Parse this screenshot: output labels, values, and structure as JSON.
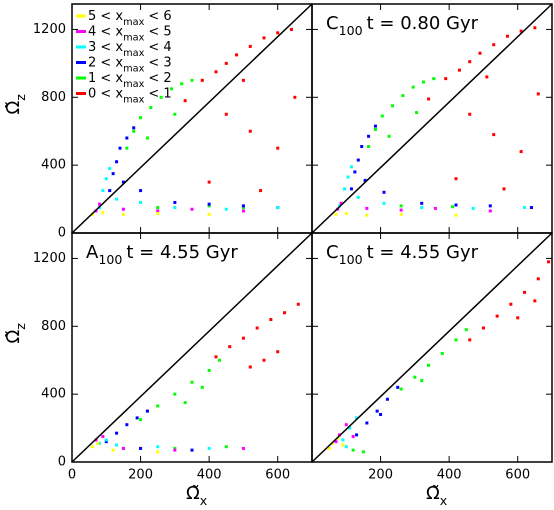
{
  "chart_data": [
    {
      "type": "scatter",
      "xlim": [
        0,
        700
      ],
      "ylim": [
        0,
        1350
      ],
      "xticks": [
        0,
        200,
        400,
        600
      ],
      "yticks": [
        0,
        400,
        800,
        1200
      ],
      "y_label": {
        "main": "Ω̃",
        "sub": "z"
      },
      "series": [
        {
          "name": {
            "pre": "5 < x",
            "sub": "max",
            "post": "< 6"
          },
          "color": "#ffff00",
          "x": [
            60,
            90,
            150,
            250,
            400
          ],
          "y": [
            110,
            120,
            110,
            115,
            110
          ]
        },
        {
          "name": {
            "pre": "4 < x",
            "sub": "max",
            "post": "< 5"
          },
          "color": "#ff00ff",
          "x": [
            70,
            80,
            150,
            250,
            350,
            500
          ],
          "y": [
            130,
            170,
            140,
            130,
            140,
            130
          ]
        },
        {
          "name": {
            "pre": "3 < x",
            "sub": "max",
            "post": "< 4"
          },
          "color": "#00ffff",
          "x": [
            80,
            90,
            100,
            110,
            130,
            200,
            300,
            450,
            600
          ],
          "y": [
            150,
            250,
            320,
            380,
            200,
            180,
            150,
            140,
            150
          ]
        },
        {
          "name": {
            "pre": "2 < x",
            "sub": "max",
            "post": "< 3"
          },
          "color": "#0000ff",
          "x": [
            110,
            120,
            130,
            140,
            160,
            180,
            150,
            200,
            300,
            400,
            500,
            600
          ],
          "y": [
            250,
            350,
            420,
            500,
            560,
            620,
            300,
            250,
            180,
            170,
            160,
            150
          ]
        },
        {
          "name": {
            "pre": "1 < x",
            "sub": "max",
            "post": "< 2"
          },
          "color": "#00ff00",
          "x": [
            160,
            180,
            200,
            230,
            260,
            290,
            320,
            350,
            220,
            300,
            250,
            400,
            500
          ],
          "y": [
            500,
            600,
            680,
            740,
            800,
            850,
            880,
            900,
            560,
            700,
            150,
            160,
            150
          ]
        },
        {
          "name": {
            "pre": "0 < x",
            "sub": "max",
            "post": "< 1"
          },
          "color": "#ff0000",
          "x": [
            330,
            380,
            420,
            450,
            480,
            520,
            560,
            600,
            640,
            450,
            520,
            600,
            400,
            550,
            650,
            500
          ],
          "y": [
            780,
            900,
            950,
            1000,
            1050,
            1100,
            1150,
            1180,
            1200,
            700,
            600,
            500,
            300,
            250,
            800,
            900
          ]
        }
      ]
    },
    {
      "type": "scatter",
      "xlim": [
        0,
        700
      ],
      "ylim": [
        0,
        1350
      ],
      "xticks": [
        0,
        200,
        400,
        600
      ],
      "yticks": [
        0,
        400,
        800,
        1200
      ],
      "title": {
        "name": "C",
        "sub": "100",
        "rest": "t = 0.80 Gyr"
      },
      "series": [
        {
          "color": "#ffff00",
          "x": [
            70,
            100,
            160,
            260,
            420
          ],
          "y": [
            110,
            115,
            105,
            110,
            105
          ]
        },
        {
          "color": "#ff00ff",
          "x": [
            75,
            85,
            160,
            260,
            360,
            520
          ],
          "y": [
            140,
            175,
            145,
            135,
            145,
            130
          ]
        },
        {
          "color": "#00ffff",
          "x": [
            80,
            95,
            105,
            115,
            135,
            210,
            320,
            470,
            620
          ],
          "y": [
            160,
            260,
            330,
            390,
            210,
            175,
            150,
            145,
            150
          ]
        },
        {
          "color": "#0000ff",
          "x": [
            115,
            125,
            135,
            145,
            165,
            185,
            155,
            210,
            320,
            420,
            520,
            640
          ],
          "y": [
            260,
            360,
            430,
            510,
            570,
            630,
            310,
            240,
            175,
            165,
            160,
            150
          ]
        },
        {
          "color": "#00ff00",
          "x": [
            165,
            185,
            205,
            235,
            265,
            295,
            325,
            355,
            225,
            305,
            260,
            410
          ],
          "y": [
            510,
            610,
            690,
            750,
            810,
            860,
            890,
            910,
            570,
            710,
            160,
            155
          ]
        },
        {
          "color": "#ff0000",
          "x": [
            340,
            390,
            430,
            460,
            490,
            530,
            570,
            610,
            650,
            460,
            530,
            610,
            420,
            560,
            660,
            510
          ],
          "y": [
            790,
            910,
            960,
            1010,
            1060,
            1110,
            1160,
            1190,
            1210,
            700,
            580,
            480,
            320,
            260,
            820,
            920
          ]
        }
      ]
    },
    {
      "type": "scatter",
      "xlim": [
        0,
        700
      ],
      "ylim": [
        0,
        1350
      ],
      "xticks": [
        0,
        200,
        400,
        600
      ],
      "yticks": [
        0,
        400,
        800,
        1200
      ],
      "title": {
        "name": "A",
        "sub": "100",
        "rest": "t = 4.55 Gyr"
      },
      "y_label": {
        "main": "Ω̃",
        "sub": "z"
      },
      "x_label": {
        "main": "Ω̃",
        "sub": "x"
      },
      "series": [
        {
          "color": "#ffff00",
          "x": [
            60,
            75,
            120,
            250
          ],
          "y": [
            90,
            110,
            70,
            60
          ]
        },
        {
          "color": "#ff00ff",
          "x": [
            70,
            90,
            150,
            300,
            500
          ],
          "y": [
            130,
            150,
            80,
            70,
            80
          ]
        },
        {
          "color": "#00ffff",
          "x": [
            80,
            100,
            130,
            250,
            400
          ],
          "y": [
            110,
            130,
            100,
            90,
            80
          ]
        },
        {
          "color": "#0000ff",
          "x": [
            100,
            130,
            160,
            190,
            220,
            200,
            350
          ],
          "y": [
            120,
            170,
            220,
            260,
            300,
            80,
            70
          ]
        },
        {
          "color": "#00ff00",
          "x": [
            200,
            250,
            300,
            350,
            400,
            430,
            330,
            380,
            150,
            300,
            450
          ],
          "y": [
            250,
            330,
            400,
            470,
            540,
            600,
            350,
            440,
            80,
            80,
            90
          ]
        },
        {
          "color": "#ff0000",
          "x": [
            420,
            460,
            500,
            540,
            580,
            620,
            660,
            560,
            600,
            520
          ],
          "y": [
            620,
            680,
            730,
            790,
            840,
            880,
            930,
            600,
            650,
            560
          ]
        }
      ]
    },
    {
      "type": "scatter",
      "xlim": [
        0,
        700
      ],
      "ylim": [
        0,
        1350
      ],
      "xticks": [
        0,
        200,
        400,
        600
      ],
      "yticks": [
        0,
        400,
        800,
        1200
      ],
      "title": {
        "name": "C",
        "sub": "100",
        "rest": "t = 4.55 Gyr"
      },
      "x_label": {
        "main": "Ω̃",
        "sub": "x"
      },
      "series": [
        {
          "color": "#ffff00",
          "x": [
            50,
            60,
            75,
            90
          ],
          "y": [
            80,
            110,
            140,
            100
          ]
        },
        {
          "color": "#ff00ff",
          "x": [
            70,
            80,
            100,
            120
          ],
          "y": [
            120,
            160,
            220,
            150
          ]
        },
        {
          "color": "#00ffff",
          "x": [
            90,
            110,
            130,
            100
          ],
          "y": [
            130,
            200,
            260,
            90
          ]
        },
        {
          "color": "#0000ff",
          "x": [
            130,
            160,
            190,
            220,
            250,
            200
          ],
          "y": [
            160,
            230,
            300,
            370,
            440,
            280
          ]
        },
        {
          "color": "#00ff00",
          "x": [
            260,
            300,
            340,
            380,
            420,
            450,
            320,
            120,
            150
          ],
          "y": [
            430,
            500,
            570,
            640,
            720,
            780,
            480,
            70,
            60
          ]
        },
        {
          "color": "#ff0000",
          "x": [
            460,
            500,
            540,
            580,
            620,
            660,
            690,
            600,
            650
          ],
          "y": [
            720,
            790,
            860,
            930,
            1000,
            1080,
            1180,
            850,
            950
          ]
        }
      ]
    }
  ]
}
